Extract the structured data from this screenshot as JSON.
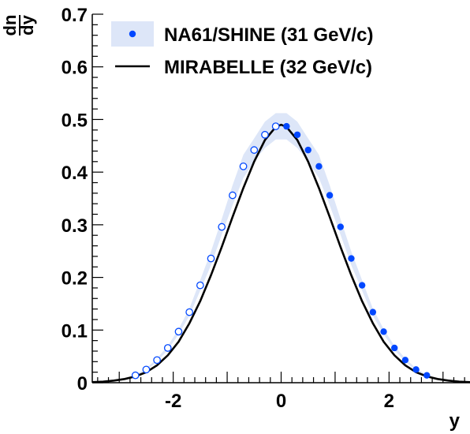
{
  "chart_data": {
    "type": "scatter",
    "xlabel": "y",
    "ylabel_numerator": "dn",
    "ylabel_denominator": "dy",
    "xlim": [
      -3.5,
      3.5
    ],
    "ylim": [
      0,
      0.7
    ],
    "xticks": [
      -2,
      0,
      2
    ],
    "xtick_labels": [
      "-2",
      "0",
      "2"
    ],
    "yticks": [
      0,
      0.1,
      0.2,
      0.3,
      0.4,
      0.5,
      0.6,
      0.7
    ],
    "ytick_labels": [
      "0",
      "0.1",
      "0.2",
      "0.3",
      "0.4",
      "0.5",
      "0.6",
      "0.7"
    ],
    "grid": false,
    "legend_position": "top-left",
    "colors": {
      "data": "#0047ff",
      "band": "#dde6f8",
      "curve": "#000000"
    },
    "series": [
      {
        "name": "NA61/SHINE (31 GeV/c)",
        "kind": "measured",
        "marker": "filled-circle",
        "x": [
          0.1,
          0.3,
          0.5,
          0.7,
          0.9,
          1.1,
          1.3,
          1.5,
          1.7,
          1.9,
          2.1,
          2.3,
          2.5,
          2.7
        ],
        "y": [
          0.487,
          0.471,
          0.442,
          0.411,
          0.356,
          0.296,
          0.236,
          0.185,
          0.134,
          0.097,
          0.066,
          0.043,
          0.025,
          0.014
        ],
        "band_lower": [
          0.462,
          0.446,
          0.42,
          0.389,
          0.337,
          0.281,
          0.223,
          0.175,
          0.127,
          0.092,
          0.062,
          0.04,
          0.023,
          0.013
        ],
        "band_upper": [
          0.512,
          0.496,
          0.464,
          0.433,
          0.375,
          0.311,
          0.249,
          0.195,
          0.141,
          0.102,
          0.07,
          0.046,
          0.027,
          0.015
        ]
      },
      {
        "name": "NA61/SHINE (31 GeV/c)",
        "kind": "reflected",
        "marker": "open-circle",
        "x": [
          -0.1,
          -0.3,
          -0.5,
          -0.7,
          -0.9,
          -1.1,
          -1.3,
          -1.5,
          -1.7,
          -1.9,
          -2.1,
          -2.3,
          -2.5,
          -2.7
        ],
        "y": [
          0.487,
          0.471,
          0.442,
          0.411,
          0.356,
          0.296,
          0.236,
          0.185,
          0.134,
          0.097,
          0.066,
          0.043,
          0.025,
          0.014
        ],
        "band_lower": [
          0.462,
          0.446,
          0.42,
          0.389,
          0.337,
          0.281,
          0.223,
          0.175,
          0.127,
          0.092,
          0.062,
          0.04,
          0.023,
          0.013
        ],
        "band_upper": [
          0.512,
          0.496,
          0.464,
          0.433,
          0.375,
          0.311,
          0.249,
          0.195,
          0.141,
          0.102,
          0.07,
          0.046,
          0.027,
          0.015
        ]
      },
      {
        "name": "MIRABELLE (32 GeV/c)",
        "kind": "model",
        "marker": "line",
        "x": [
          -3.5,
          -3.3,
          -3.1,
          -2.9,
          -2.7,
          -2.5,
          -2.3,
          -2.1,
          -1.9,
          -1.7,
          -1.5,
          -1.3,
          -1.1,
          -0.9,
          -0.7,
          -0.5,
          -0.3,
          -0.1,
          0.0,
          0.1,
          0.3,
          0.5,
          0.7,
          0.9,
          1.1,
          1.3,
          1.5,
          1.7,
          1.9,
          2.1,
          2.3,
          2.5,
          2.7,
          2.9,
          3.1,
          3.3,
          3.5
        ],
        "y": [
          0.001,
          0.002,
          0.004,
          0.007,
          0.012,
          0.02,
          0.033,
          0.052,
          0.078,
          0.113,
          0.155,
          0.204,
          0.258,
          0.315,
          0.37,
          0.42,
          0.461,
          0.486,
          0.49,
          0.486,
          0.461,
          0.42,
          0.37,
          0.315,
          0.258,
          0.204,
          0.155,
          0.113,
          0.078,
          0.052,
          0.033,
          0.02,
          0.012,
          0.007,
          0.004,
          0.002,
          0.001
        ]
      }
    ],
    "legend": [
      {
        "label": "NA61/SHINE (31 GeV/c)",
        "marker": "filled-circle-band"
      },
      {
        "label": "MIRABELLE (32 GeV/c)",
        "marker": "line"
      }
    ]
  }
}
